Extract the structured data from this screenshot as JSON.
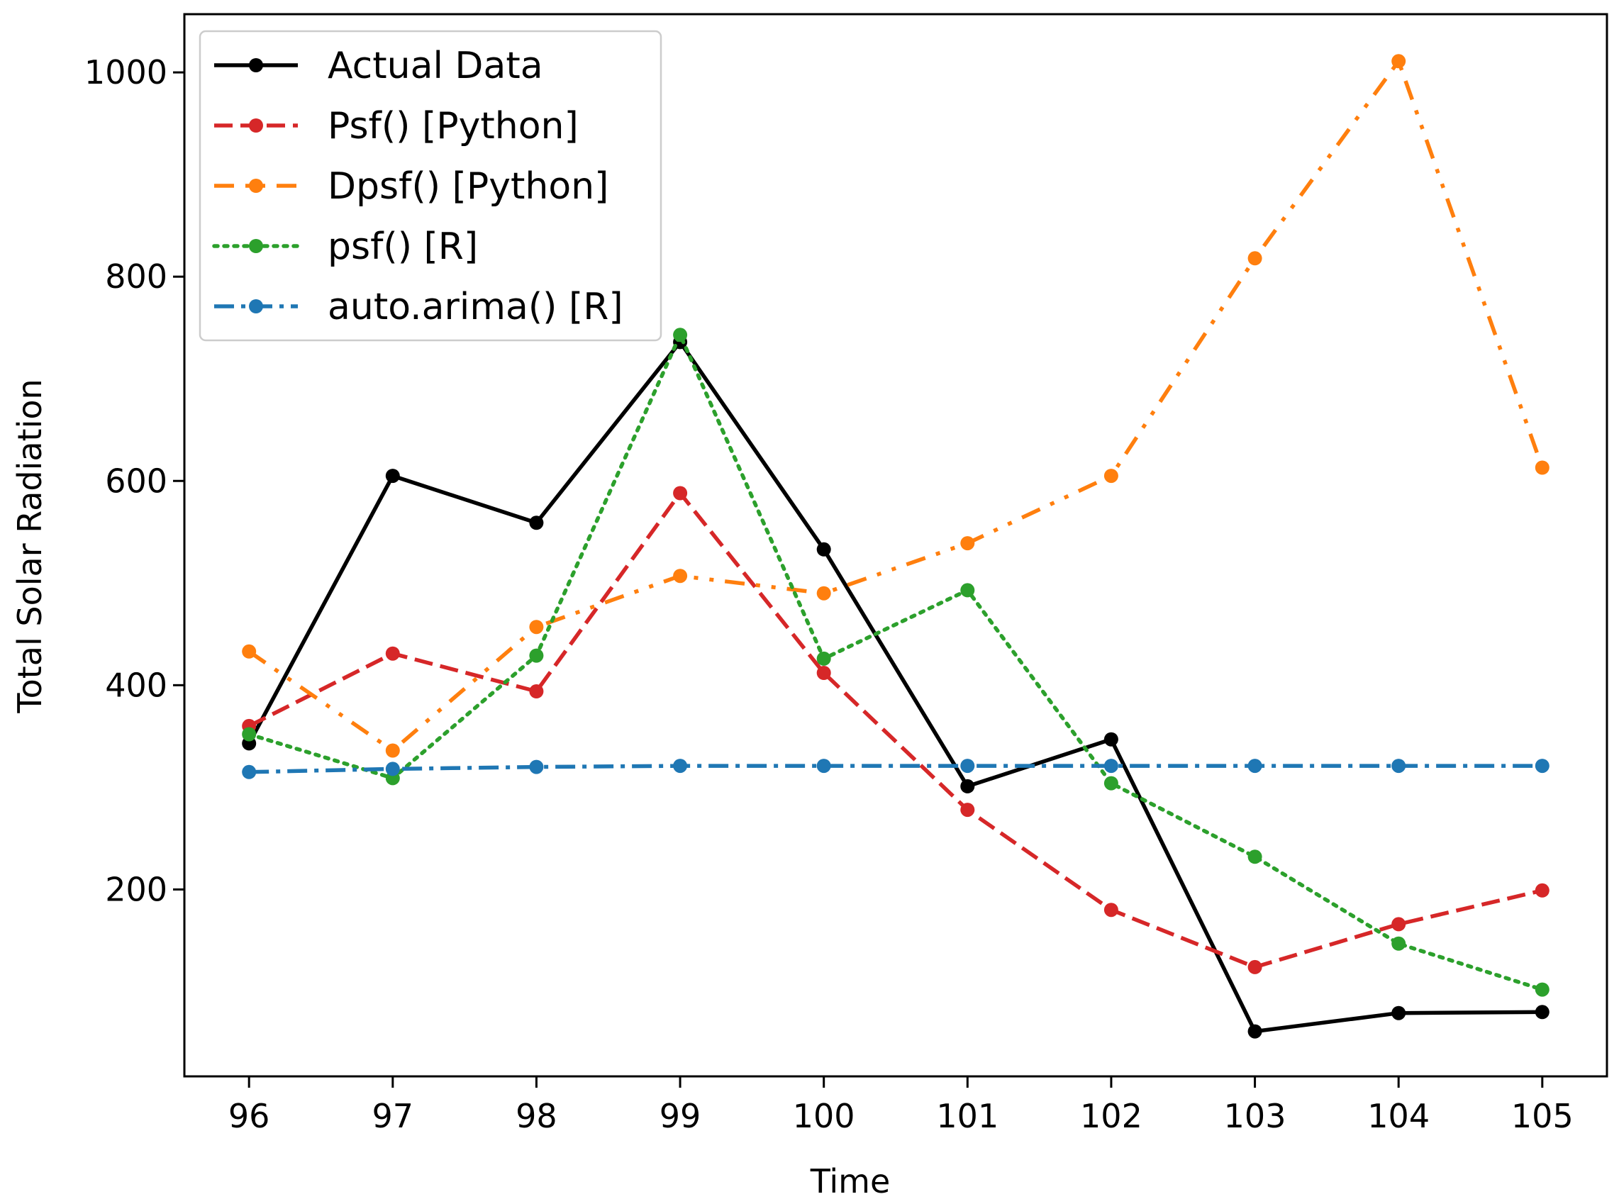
{
  "chart_data": {
    "type": "line",
    "title": "",
    "xlabel": "Time",
    "ylabel": "Total Solar Radiation",
    "x": [
      96,
      97,
      98,
      99,
      100,
      101,
      102,
      103,
      104,
      105
    ],
    "x_tick_labels": [
      "96",
      "97",
      "98",
      "99",
      "100",
      "101",
      "102",
      "103",
      "104",
      "105"
    ],
    "y_ticks": [
      200,
      400,
      600,
      800,
      1000
    ],
    "y_tick_labels": [
      "200",
      "400",
      "600",
      "800",
      "1000"
    ],
    "xlim": [
      95.55,
      105.45
    ],
    "ylim": [
      17,
      1057
    ],
    "grid": false,
    "legend_position": "top-left",
    "series": [
      {
        "name": "Actual Data",
        "color": "#000000",
        "style": "solid",
        "values": [
          343,
          605,
          559,
          736,
          533,
          301,
          347,
          61,
          79,
          80
        ]
      },
      {
        "name": "Psf() [Python]",
        "color": "#d62728",
        "style": "dashed",
        "values": [
          360,
          431,
          394,
          588,
          412,
          278,
          180,
          124,
          166,
          199
        ]
      },
      {
        "name": "Dpsf() [Python]",
        "color": "#ff7f0e",
        "style": "dashdotdot",
        "values": [
          433,
          336,
          457,
          507,
          490,
          539,
          605,
          818,
          1011,
          613
        ]
      },
      {
        "name": "psf() [R]",
        "color": "#2ca02c",
        "style": "dotted",
        "values": [
          352,
          309,
          429,
          743,
          426,
          493,
          304,
          232,
          147,
          102
        ]
      },
      {
        "name": "auto.arima() [R]",
        "color": "#1f77b4",
        "style": "dashdot",
        "values": [
          315,
          318,
          320,
          321,
          321,
          321,
          321,
          321,
          321,
          321
        ]
      }
    ]
  }
}
